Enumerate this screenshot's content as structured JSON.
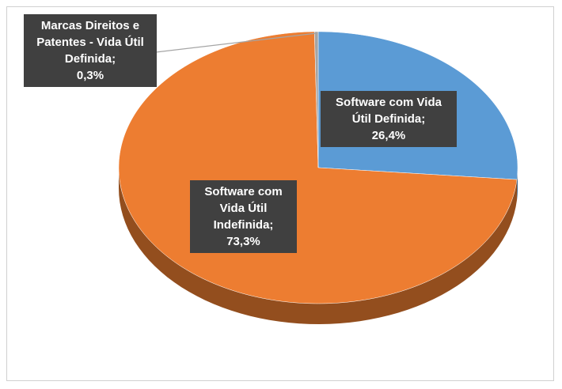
{
  "chart_data": {
    "type": "pie3d",
    "categories": [
      "Software com Vida Útil Definida",
      "Software com Vida Útil Indefinida",
      "Marcas Direitos e Patentes - Vida Útil Definida"
    ],
    "values": [
      26.4,
      73.3,
      0.3
    ],
    "value_labels": [
      "26,4%",
      "73,3%",
      "0,3%"
    ],
    "label_separator": ";",
    "colors": [
      "#5b9bd5",
      "#ed7d31",
      "#a5a5a5"
    ]
  }
}
